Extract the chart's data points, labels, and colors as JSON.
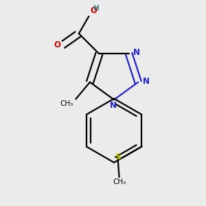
{
  "background_color": "#ebebeb",
  "atom_colors": {
    "C": "#000000",
    "N": "#2020cc",
    "O": "#cc0000",
    "S": "#c8c800",
    "H": "#2e8b8b"
  },
  "figsize": [
    3.0,
    3.0
  ],
  "dpi": 100
}
